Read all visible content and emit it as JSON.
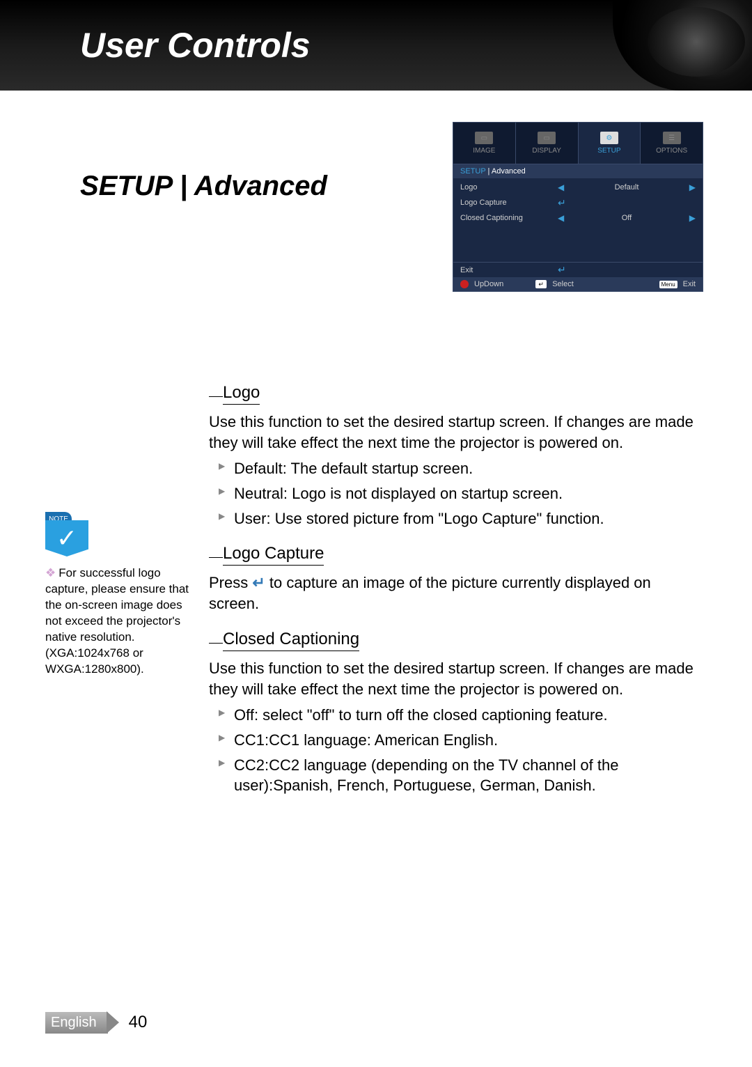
{
  "header": {
    "title": "User Controls"
  },
  "section": {
    "title": "SETUP | Advanced"
  },
  "osd": {
    "tabs": [
      {
        "label": "IMAGE"
      },
      {
        "label": "DISPLAY"
      },
      {
        "label": "SETUP",
        "active": true
      },
      {
        "label": "OPTIONS"
      }
    ],
    "breadcrumb": {
      "a": "SETUP",
      "sep": " | ",
      "b": "Advanced"
    },
    "rows": [
      {
        "label": "Logo",
        "type": "lr",
        "value": "Default"
      },
      {
        "label": "Logo Capture",
        "type": "enter"
      },
      {
        "label": "Closed Captioning",
        "type": "lr",
        "value": "Off"
      }
    ],
    "exit": {
      "label": "Exit",
      "type": "enter"
    },
    "footer": {
      "updown": "UpDown",
      "select": "Select",
      "menu": "Menu",
      "exit": "Exit"
    }
  },
  "note": {
    "badge": "NOTE",
    "check": "✓",
    "text": "For successful logo capture, please ensure that the on-screen image does not exceed the projector's native resolution. (XGA:1024x768 or WXGA:1280x800)."
  },
  "subsections": {
    "logo": {
      "title": "Logo",
      "body": "Use this function to set the desired startup screen. If changes are made they will take effect the next time the projector is powered on.",
      "bullets": [
        "Default: The default startup screen.",
        "Neutral: Logo is not displayed on startup screen.",
        "User: Use stored picture from \"Logo Capture\" function."
      ]
    },
    "logoCapture": {
      "title": "Logo Capture",
      "body_a": "Press ",
      "body_b": " to capture an image of the picture currently displayed on screen."
    },
    "closedCaptioning": {
      "title": "Closed Captioning",
      "body": "Use this function to set the desired startup screen. If changes are made they will take effect the next time the projector is powered on.",
      "bullets": [
        "Off: select \"off\" to turn off the closed captioning feature.",
        "CC1:CC1 language: American English.",
        "CC2:CC2 language (depending on the TV channel of the user):Spanish, French, Portuguese, German, Danish."
      ]
    }
  },
  "footer": {
    "language": "English",
    "page": "40"
  },
  "colors": {
    "osd_bg": "#1a2844",
    "osd_accent": "#3a9fd8",
    "note_blue": "#2aa0e0"
  }
}
